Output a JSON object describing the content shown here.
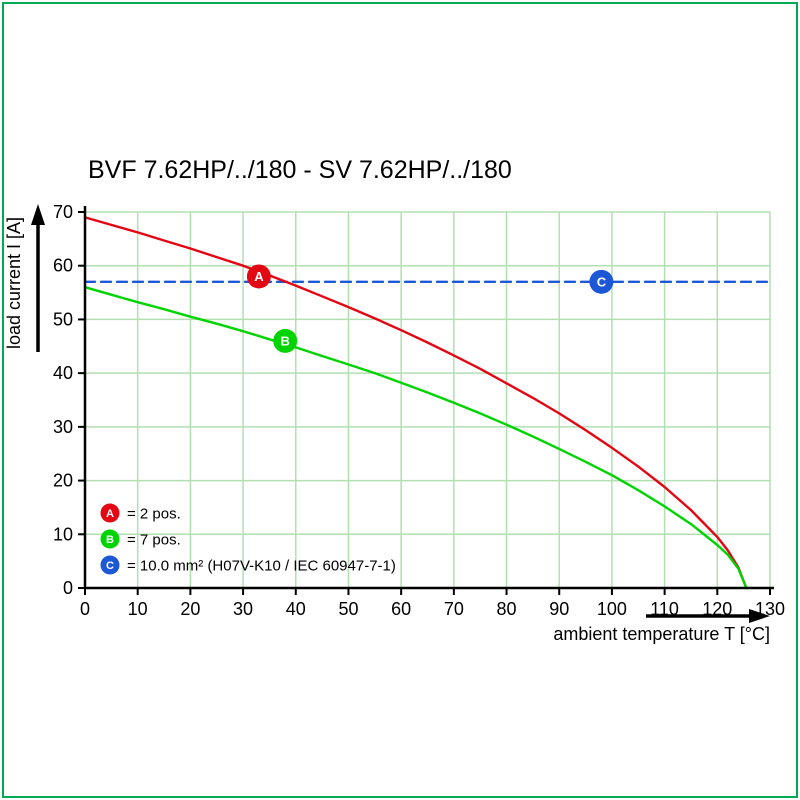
{
  "page": {
    "border_color": "#00aa55"
  },
  "chart_data": {
    "type": "line",
    "title": "BVF 7.62HP/../180 - SV 7.62HP/../180",
    "xlabel": "ambient temperature T [°C]",
    "ylabel": "load current I [A]",
    "xlim": [
      0,
      130
    ],
    "ylim": [
      0,
      70
    ],
    "x_ticks": [
      0,
      10,
      20,
      30,
      40,
      50,
      60,
      70,
      80,
      90,
      100,
      110,
      120,
      130
    ],
    "y_ticks": [
      0,
      10,
      20,
      30,
      40,
      50,
      60,
      70
    ],
    "grid": true,
    "grid_color": "#b2dfb2",
    "series": [
      {
        "name": "A",
        "color": "#e30613",
        "style": "solid",
        "points": [
          [
            0,
            69
          ],
          [
            5,
            67.6
          ],
          [
            10,
            66.2
          ],
          [
            15,
            64.7
          ],
          [
            20,
            63.2
          ],
          [
            25,
            61.6
          ],
          [
            30,
            60
          ],
          [
            35,
            58.2
          ],
          [
            40,
            56.3
          ],
          [
            45,
            54.3
          ],
          [
            50,
            52.3
          ],
          [
            55,
            50.2
          ],
          [
            60,
            48
          ],
          [
            65,
            45.7
          ],
          [
            70,
            43.3
          ],
          [
            75,
            40.8
          ],
          [
            80,
            38.1
          ],
          [
            85,
            35.4
          ],
          [
            90,
            32.5
          ],
          [
            95,
            29.4
          ],
          [
            100,
            26.1
          ],
          [
            105,
            22.6
          ],
          [
            110,
            18.8
          ],
          [
            115,
            14.5
          ],
          [
            120,
            9.5
          ],
          [
            122,
            7
          ],
          [
            124,
            3.8
          ],
          [
            125.5,
            0
          ]
        ],
        "marker": {
          "x": 33,
          "y": 58,
          "letter": "A"
        }
      },
      {
        "name": "B",
        "color": "#00d400",
        "style": "solid",
        "points": [
          [
            0,
            56
          ],
          [
            5,
            54.6
          ],
          [
            10,
            53.2
          ],
          [
            15,
            51.9
          ],
          [
            20,
            50.5
          ],
          [
            25,
            49.2
          ],
          [
            30,
            47.8
          ],
          [
            35,
            46.3
          ],
          [
            40,
            44.8
          ],
          [
            45,
            43.2
          ],
          [
            50,
            41.6
          ],
          [
            55,
            40
          ],
          [
            60,
            38.2
          ],
          [
            65,
            36.4
          ],
          [
            70,
            34.5
          ],
          [
            75,
            32.5
          ],
          [
            80,
            30.4
          ],
          [
            85,
            28.2
          ],
          [
            90,
            25.9
          ],
          [
            95,
            23.5
          ],
          [
            100,
            21
          ],
          [
            105,
            18.2
          ],
          [
            110,
            15.2
          ],
          [
            115,
            11.9
          ],
          [
            120,
            8
          ],
          [
            122,
            6.2
          ],
          [
            124,
            3.6
          ],
          [
            125.5,
            0
          ]
        ],
        "marker": {
          "x": 38,
          "y": 46,
          "letter": "B"
        }
      },
      {
        "name": "C",
        "color": "#1c57d6",
        "style": "dashed",
        "points": [
          [
            0,
            57
          ],
          [
            130,
            57
          ]
        ],
        "marker": {
          "x": 98,
          "y": 57,
          "letter": "C"
        }
      }
    ],
    "legend": {
      "position": "bottom-left",
      "items": [
        {
          "letter": "A",
          "color": "#e30613",
          "text": "= 2 pos."
        },
        {
          "letter": "B",
          "color": "#00d400",
          "text": "= 7 pos."
        },
        {
          "letter": "C",
          "color": "#1c57d6",
          "text": "= 10.0 mm² (H07V-K10 / IEC 60947-7-1)"
        }
      ]
    }
  }
}
